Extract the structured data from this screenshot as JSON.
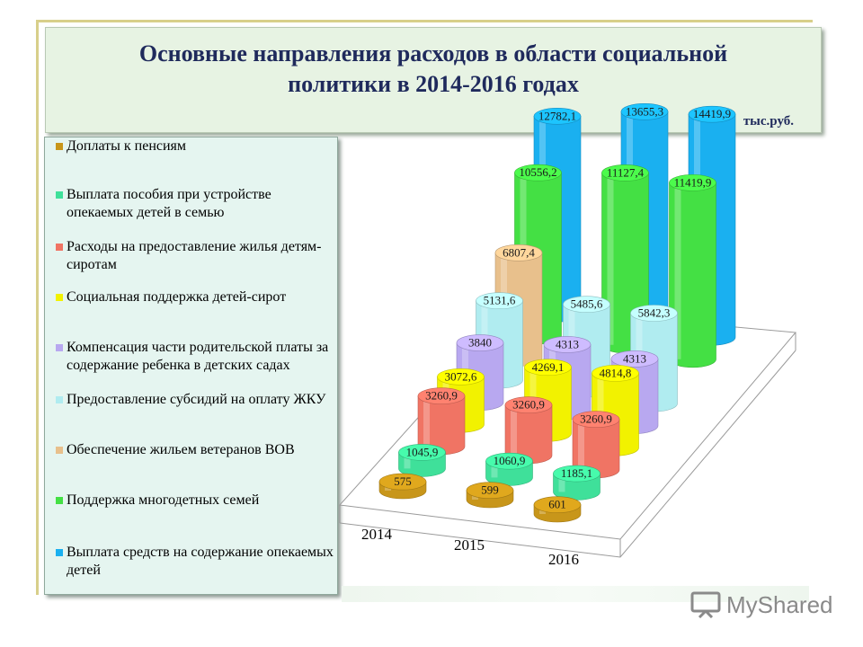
{
  "header": {
    "title_line1": "Основные направления расходов в области социальной",
    "title_line2": "политики в 2014-2016 годах",
    "unit": "тыс.руб."
  },
  "watermark": {
    "text": "MyShared"
  },
  "chart_data": {
    "type": "bar",
    "categories": [
      "2014",
      "2015",
      "2016"
    ],
    "series": [
      {
        "name": "Доплаты к пенсиям",
        "color": "#c8961a",
        "values": [
          575,
          599,
          601
        ],
        "labels": [
          "575",
          "599",
          "601"
        ]
      },
      {
        "name": "Выплата пособия при устройстве опекаемых детей в семью",
        "color": "#3fe09a",
        "values": [
          1045.9,
          1060.9,
          1185.1
        ],
        "labels": [
          "1045,9",
          "1060,9",
          "1185,1"
        ]
      },
      {
        "name": "Расходы на предоставление жилья детям-сиротам",
        "color": "#f07464",
        "values": [
          3260.9,
          3260.9,
          3260.9
        ],
        "labels": [
          "3260,9",
          "3260,9",
          "3260,9"
        ]
      },
      {
        "name": "Социальная поддержка детей-сирот",
        "color": "#f2f200",
        "values": [
          3072.6,
          4269.1,
          4814.8
        ],
        "labels": [
          "3072,6",
          "4269,1",
          "4814,8"
        ]
      },
      {
        "name": "Компенсация части родительской платы за содержание ребенка в детских садах",
        "color": "#b8a8f0",
        "values": [
          3840,
          4313,
          4313
        ],
        "labels": [
          "3840",
          "4313",
          "4313"
        ]
      },
      {
        "name": "Предоставление субсидий на оплату ЖКУ",
        "color": "#b0ecf0",
        "values": [
          5131.6,
          5485.6,
          5842.3
        ],
        "labels": [
          "5131,6",
          "5485,6",
          "5842,3"
        ]
      },
      {
        "name": "Обеспечение жильем ветеранов ВОВ",
        "color": "#e8c08c",
        "values": [
          6807.4,
          null,
          null
        ],
        "labels": [
          "6807,4",
          "",
          ""
        ]
      },
      {
        "name": "Поддержка многодетных семей",
        "color": "#44e044",
        "values": [
          10556.2,
          11127.4,
          11419.9
        ],
        "labels": [
          "10556,2",
          "11127,4",
          "11419,9"
        ]
      },
      {
        "name": "Выплата средств на содержание опекаемых детей",
        "color": "#1ab0f0",
        "values": [
          12782.1,
          13655.3,
          14419.9
        ],
        "labels": [
          "12782,1",
          "13655,3",
          "14419,9"
        ]
      }
    ],
    "legend": "left"
  }
}
